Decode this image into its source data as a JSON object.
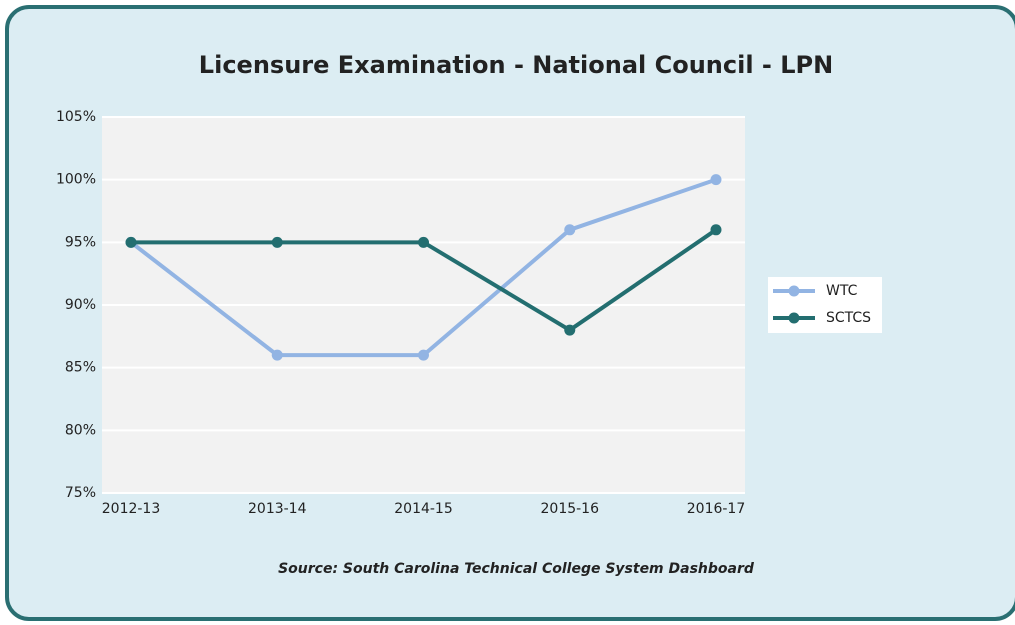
{
  "chart_data": {
    "type": "line",
    "title": "Licensure Examination - National Council - LPN",
    "categories": [
      "2012-13",
      "2013-14",
      "2014-15",
      "2015-16",
      "2016-17"
    ],
    "series": [
      {
        "name": "WTC",
        "color": "#92b4e3",
        "values": [
          95,
          86,
          86,
          96,
          100
        ]
      },
      {
        "name": "SCTCS",
        "color": "#236e70",
        "values": [
          95,
          95,
          95,
          88,
          96
        ]
      }
    ],
    "ylim": [
      75,
      105
    ],
    "yticks": [
      {
        "value": 75,
        "label": "75%"
      },
      {
        "value": 80,
        "label": "80%"
      },
      {
        "value": 85,
        "label": "85%"
      },
      {
        "value": 90,
        "label": "90%"
      },
      {
        "value": 95,
        "label": "95%"
      },
      {
        "value": 100,
        "label": "100%"
      },
      {
        "value": 105,
        "label": "105%"
      }
    ],
    "grid": true,
    "legend": "right",
    "annotation": "Source: South Carolina Technical College System Dashboard"
  }
}
